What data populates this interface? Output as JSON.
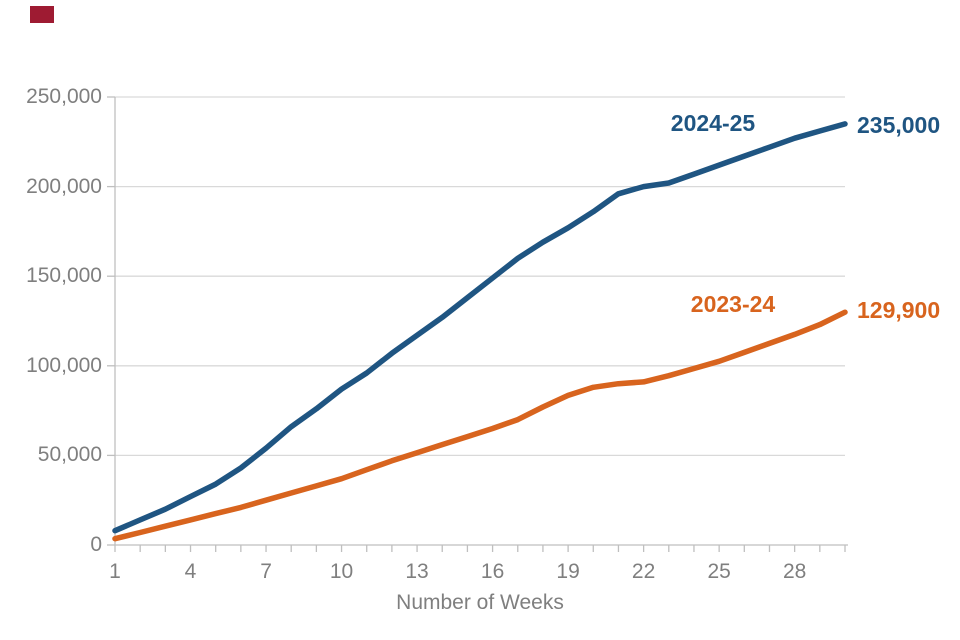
{
  "chart_data": {
    "type": "line",
    "title": "",
    "xlabel": "Number of Weeks",
    "ylabel": "",
    "x": [
      1,
      2,
      3,
      4,
      5,
      6,
      7,
      8,
      9,
      10,
      11,
      12,
      13,
      14,
      15,
      16,
      17,
      18,
      19,
      20,
      21,
      22,
      23,
      24,
      25,
      26,
      27,
      28,
      29,
      30
    ],
    "x_tick_labels": [
      1,
      4,
      7,
      10,
      13,
      16,
      19,
      22,
      25,
      28
    ],
    "xlim": [
      1,
      30
    ],
    "ylim": [
      0,
      250000
    ],
    "y_ticks": [
      0,
      50000,
      100000,
      150000,
      200000,
      250000
    ],
    "y_tick_labels": [
      "0",
      "50,000",
      "100,000",
      "150,000",
      "200,000",
      "250,000"
    ],
    "grid": true,
    "legend_position": "inline-end-of-line-labels",
    "series": [
      {
        "name": "2024-25",
        "end_label": "235,000",
        "color": "#1F5582",
        "values": [
          8000,
          14000,
          20000,
          27000,
          34000,
          43000,
          54000,
          66000,
          76000,
          87000,
          96000,
          107000,
          117000,
          127000,
          138000,
          149000,
          160000,
          169000,
          177000,
          186000,
          196000,
          200000,
          202000,
          207000,
          212000,
          217000,
          222000,
          227000,
          231000,
          235000
        ]
      },
      {
        "name": "2023-24",
        "end_label": "129,900",
        "color": "#D8641E",
        "values": [
          3500,
          7000,
          10500,
          14000,
          17500,
          21000,
          25000,
          29000,
          33000,
          37000,
          42000,
          47000,
          51500,
          56000,
          60500,
          65000,
          70000,
          77000,
          83500,
          88000,
          90000,
          91000,
          94500,
          98500,
          102500,
          107500,
          112500,
          117500,
          123000,
          129900
        ]
      }
    ]
  },
  "annotations": {
    "series1_name": "2024-25",
    "series1_end": "235,000",
    "series2_name": "2023-24",
    "series2_end": "129,900",
    "xlabel": "Number of Weeks"
  },
  "colors": {
    "series1": "#1F5582",
    "series2": "#D8641E",
    "gridline": "#D9D9D9",
    "axis_line": "#BFBFBF",
    "tick_text": "#7F7F7F",
    "corner_mark": "#9E1B32",
    "background": "#FFFFFF"
  }
}
